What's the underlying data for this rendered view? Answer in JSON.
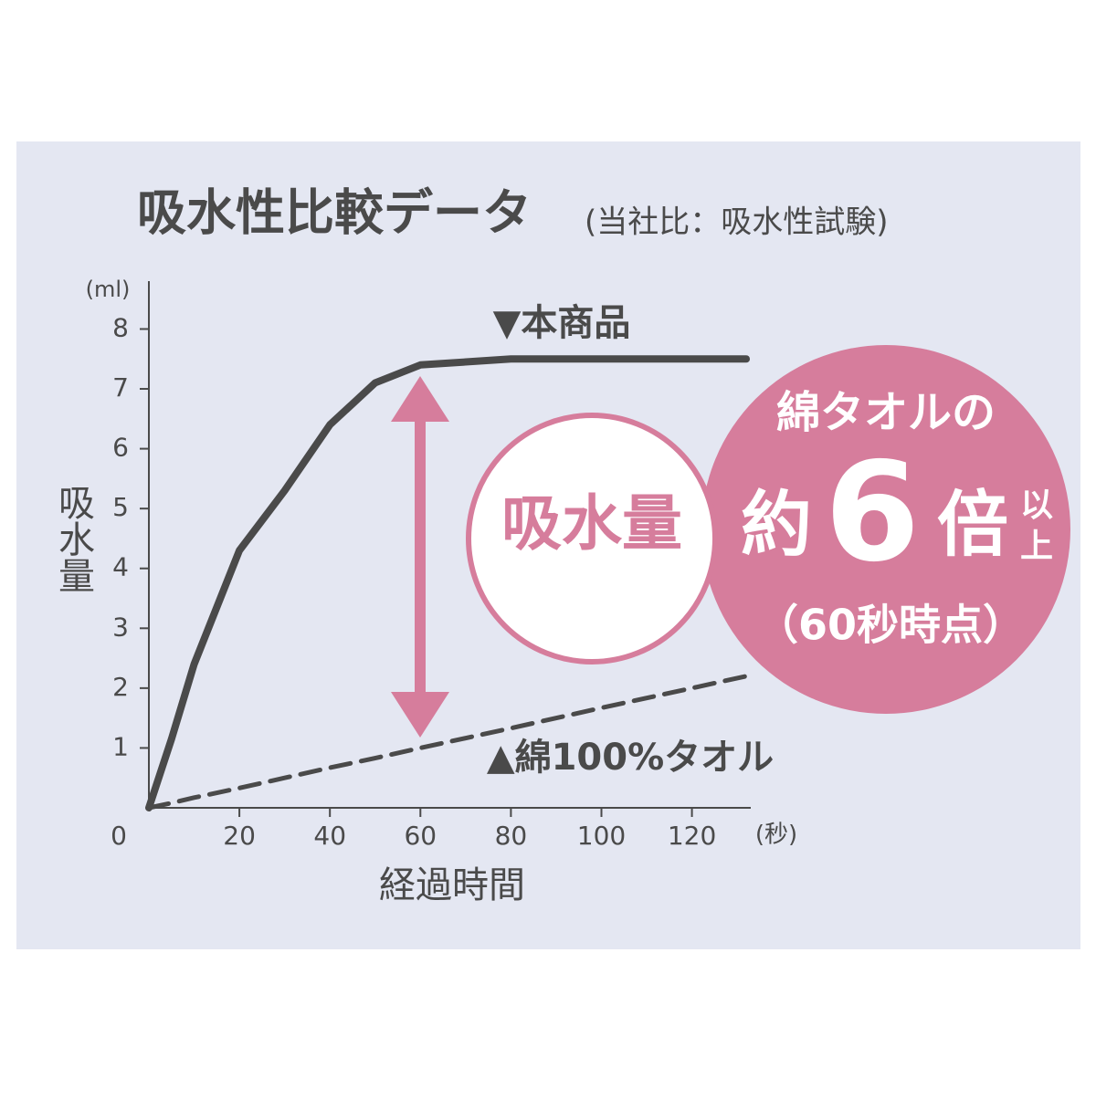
{
  "chart_data": {
    "type": "line",
    "title": "吸水性比較データ",
    "subtitle": "(当社比：吸水性試験)",
    "x_label": "経過時間",
    "y_label": "吸水量",
    "x_unit": "(秒)",
    "y_unit": "(ml)",
    "x": [
      0,
      5,
      10,
      20,
      30,
      40,
      50,
      60,
      80,
      100,
      120,
      132
    ],
    "series": [
      {
        "name": "▼本商品",
        "color": "#4a4a4a",
        "dashed": false,
        "values": [
          0,
          1.15,
          2.4,
          4.3,
          5.3,
          6.4,
          7.1,
          7.4,
          7.5,
          7.5,
          7.5,
          7.5
        ]
      },
      {
        "name": "▲綿100%タオル",
        "color": "#4a4a4a",
        "dashed": true,
        "values": [
          0,
          0.08,
          0.17,
          0.33,
          0.5,
          0.67,
          0.83,
          1.0,
          1.33,
          1.67,
          2.0,
          2.2
        ]
      }
    ],
    "xlim": [
      0,
      133
    ],
    "ylim": [
      0,
      8.8
    ],
    "xticks": [
      0,
      20,
      40,
      60,
      80,
      100,
      120
    ],
    "yticks": [
      1,
      2,
      3,
      4,
      5,
      6,
      7,
      8
    ],
    "annotations": {
      "center": "吸水量",
      "line1": "綿タオルの",
      "prefix": "約",
      "number": "6",
      "suffix": "倍",
      "small1": "以",
      "small2": "上",
      "note": "（60秒時点）"
    }
  }
}
